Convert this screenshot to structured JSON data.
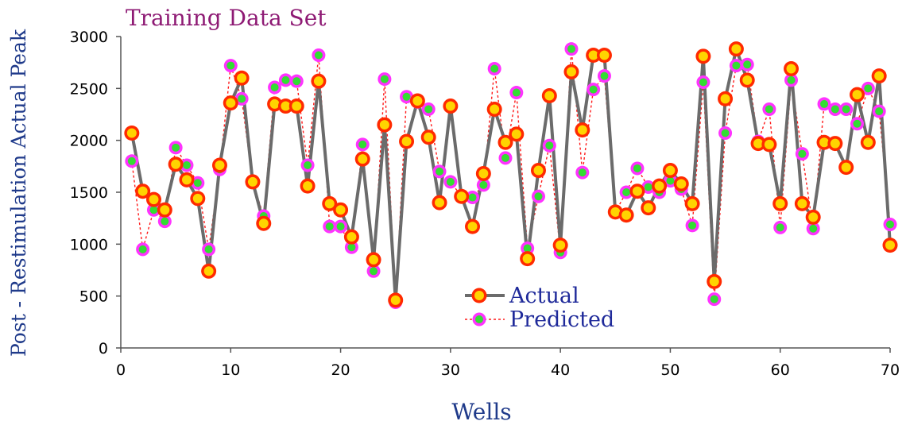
{
  "chart_data": {
    "type": "line",
    "title": "Training Data Set",
    "xlabel": "Wells",
    "ylabel": "Post - Restimulation Actual Peak",
    "xlim": [
      0,
      70
    ],
    "ylim": [
      0,
      3000
    ],
    "x_ticks": [
      0,
      10,
      20,
      30,
      40,
      50,
      60,
      70
    ],
    "y_ticks": [
      0,
      500,
      1000,
      1500,
      2000,
      2500,
      3000
    ],
    "grid": false,
    "legend_position": "center-right",
    "x": [
      1,
      2,
      3,
      4,
      5,
      6,
      7,
      8,
      9,
      10,
      11,
      12,
      13,
      14,
      15,
      16,
      17,
      18,
      19,
      20,
      21,
      22,
      23,
      24,
      25,
      26,
      27,
      28,
      29,
      30,
      31,
      32,
      33,
      34,
      35,
      36,
      37,
      38,
      39,
      40,
      41,
      42,
      43,
      44,
      45,
      46,
      47,
      48,
      49,
      50,
      51,
      52,
      53,
      54,
      55,
      56,
      57,
      58,
      59,
      60,
      61,
      62,
      63,
      64,
      65,
      66,
      67,
      68,
      69,
      70
    ],
    "series": [
      {
        "name": "Actual",
        "line_color": "#6b6b6b",
        "marker_face": "#ffd400",
        "marker_edge": "#ff2a00",
        "values": [
          2070,
          1510,
          1430,
          1330,
          1770,
          1620,
          1440,
          740,
          1760,
          2360,
          2600,
          1600,
          1200,
          2350,
          2330,
          2330,
          1560,
          2570,
          1390,
          1330,
          1070,
          1820,
          850,
          2150,
          460,
          1990,
          2380,
          2030,
          1400,
          2330,
          1460,
          1170,
          1680,
          2300,
          1980,
          2060,
          860,
          1710,
          2430,
          990,
          2660,
          2100,
          2820,
          2820,
          1310,
          1280,
          1510,
          1350,
          1560,
          1710,
          1580,
          1390,
          2810,
          640,
          2400,
          2880,
          2580,
          1970,
          1960,
          1390,
          2690,
          1390,
          1260,
          1980,
          1970,
          1740,
          2440,
          1980,
          2620,
          990
        ]
      },
      {
        "name": "Predicted",
        "line_color": "#ff1a1a",
        "marker_face": "#33dd33",
        "marker_edge": "#ff33ff",
        "values": [
          1800,
          950,
          1330,
          1220,
          1930,
          1760,
          1590,
          950,
          1720,
          2720,
          2400,
          1600,
          1270,
          2510,
          2580,
          2570,
          1760,
          2820,
          1170,
          1170,
          970,
          1960,
          740,
          2590,
          440,
          2420,
          2370,
          2300,
          1700,
          1600,
          1460,
          1450,
          1570,
          2690,
          1830,
          2460,
          960,
          1460,
          1950,
          920,
          2880,
          1690,
          2490,
          2620,
          1310,
          1500,
          1730,
          1550,
          1500,
          1610,
          1530,
          1180,
          2560,
          470,
          2070,
          2720,
          2730,
          1990,
          2300,
          1160,
          2580,
          1870,
          1150,
          2350,
          2300,
          2300,
          2160,
          2500,
          2280,
          1190
        ]
      }
    ]
  }
}
